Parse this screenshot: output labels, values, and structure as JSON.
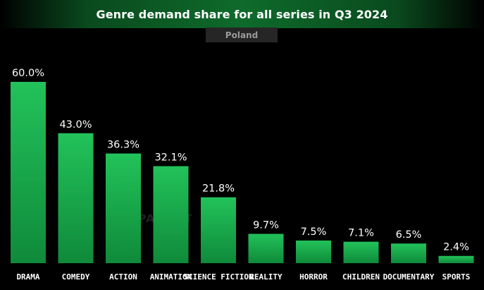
{
  "header": {
    "title": "Genre demand share for all series in Q3 2024",
    "subtitle": "Poland"
  },
  "watermark": {
    "text": "PARROT",
    "icon": "parrot-logo-icon"
  },
  "colors": {
    "background": "#000000",
    "bar_top": "#22c25a",
    "bar_bottom": "#0f8a3a",
    "banner": "#0e6b2b",
    "subtitle_box": "#262626"
  },
  "chart_data": {
    "type": "bar",
    "title": "Genre demand share for all series in Q3 2024",
    "subtitle": "Poland",
    "categories": [
      "DRAMA",
      "COMEDY",
      "ACTION",
      "ANIMATION",
      "SCIENCE FICTION",
      "REALITY",
      "HORROR",
      "CHILDREN",
      "DOCUMENTARY",
      "SPORTS"
    ],
    "values": [
      60.0,
      43.0,
      36.3,
      32.1,
      21.8,
      9.7,
      7.5,
      7.1,
      6.5,
      2.4
    ],
    "value_labels": [
      "60.0%",
      "43.0%",
      "36.3%",
      "32.1%",
      "21.8%",
      "9.7%",
      "7.5%",
      "7.1%",
      "6.5%",
      "2.4%"
    ],
    "xlabel": "",
    "ylabel": "",
    "ylim": [
      0,
      60
    ],
    "grid": false,
    "legend": "none"
  }
}
